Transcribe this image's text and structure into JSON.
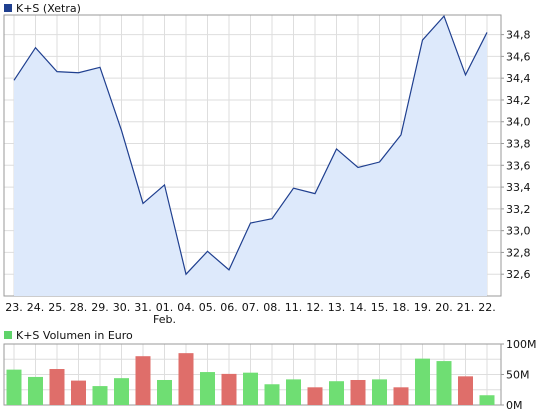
{
  "chart_data": [
    {
      "type": "area",
      "legend": {
        "label": "K+S (Xetra)",
        "color": "#1f3f8f",
        "placement": "top-left"
      },
      "categories": [
        "23.",
        "24.",
        "25.",
        "28.",
        "29.",
        "30.",
        "31.",
        "01.",
        "04.",
        "05.",
        "06.",
        "07.",
        "08.",
        "11.",
        "12.",
        "13.",
        "14.",
        "15.",
        "18.",
        "19.",
        "20.",
        "21.",
        "22."
      ],
      "month_label": {
        "text": "Feb.",
        "under_category": "01."
      },
      "values": [
        34.38,
        34.68,
        34.46,
        34.45,
        34.5,
        33.92,
        33.25,
        33.42,
        32.6,
        32.81,
        32.64,
        33.07,
        33.11,
        33.39,
        33.34,
        33.75,
        33.58,
        33.63,
        33.88,
        34.75,
        34.97,
        34.43,
        34.82
      ],
      "y_ticks": [
        "32,6",
        "32,8",
        "33,0",
        "33,2",
        "33,4",
        "33,6",
        "33,8",
        "34,0",
        "34,2",
        "34,4",
        "34,6",
        "34,8"
      ],
      "y_tick_values": [
        32.6,
        32.8,
        33.0,
        33.2,
        33.4,
        33.6,
        33.8,
        34.0,
        34.2,
        34.4,
        34.6,
        34.8
      ],
      "ylim": [
        32.4,
        34.98
      ],
      "y_axis_side": "right",
      "grid": true,
      "line_color": "#1f3f8f",
      "fill_color": "#dde9fb"
    },
    {
      "type": "bar",
      "legend": {
        "label": "K+S Volumen in Euro",
        "color": "#5fd36a",
        "placement": "top-left"
      },
      "categories": [
        "23.",
        "24.",
        "25.",
        "28.",
        "29.",
        "30.",
        "31.",
        "01.",
        "04.",
        "05.",
        "06.",
        "07.",
        "08.",
        "11.",
        "12.",
        "13.",
        "14.",
        "15.",
        "18.",
        "19.",
        "20.",
        "21.",
        "22."
      ],
      "values_millions": [
        58,
        46,
        59,
        40,
        31,
        44,
        80,
        41,
        85,
        54,
        51,
        53,
        34,
        42,
        29,
        39,
        41,
        42,
        29,
        76,
        72,
        47,
        16
      ],
      "direction": [
        "up",
        "up",
        "down",
        "down",
        "up",
        "up",
        "down",
        "up",
        "down",
        "up",
        "down",
        "up",
        "up",
        "up",
        "down",
        "up",
        "down",
        "up",
        "down",
        "up",
        "up",
        "down",
        "up"
      ],
      "y_ticks": [
        "0M",
        "50M",
        "100M"
      ],
      "y_tick_values": [
        0,
        50,
        100
      ],
      "ylim": [
        0,
        100
      ],
      "y_axis_side": "right",
      "grid": true,
      "up_color": "#6fde73",
      "down_color": "#df6e6a"
    }
  ]
}
